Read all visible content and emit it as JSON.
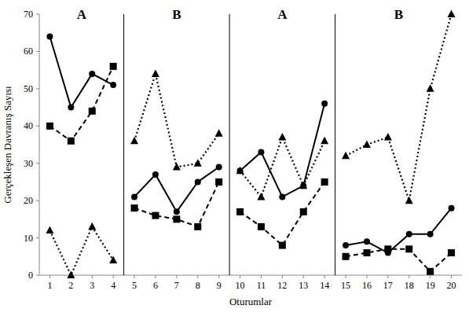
{
  "chart_data": {
    "type": "line",
    "x_label": "Oturumlar",
    "y_label": "Gerçekleşen Davranış Sayısı",
    "x": [
      1,
      2,
      3,
      4,
      5,
      6,
      7,
      8,
      9,
      10,
      11,
      12,
      13,
      14,
      15,
      16,
      17,
      18,
      19,
      20
    ],
    "xlim": [
      0.5,
      20.5
    ],
    "xticks": [
      1,
      2,
      3,
      4,
      5,
      6,
      7,
      8,
      9,
      10,
      11,
      12,
      13,
      14,
      15,
      16,
      17,
      18,
      19,
      20
    ],
    "ylim": [
      0,
      70
    ],
    "yticks": [
      0,
      10,
      20,
      30,
      40,
      50,
      60,
      70
    ],
    "grid": false,
    "phases": [
      {
        "label": "A",
        "start": 1,
        "end": 4
      },
      {
        "label": "B",
        "start": 5,
        "end": 9
      },
      {
        "label": "A",
        "start": 10,
        "end": 14
      },
      {
        "label": "B",
        "start": 15,
        "end": 20
      }
    ],
    "series": [
      {
        "color": "#000000",
        "marker": "circle",
        "line_style": "solid",
        "values": [
          64,
          45,
          54,
          51,
          21,
          27,
          17,
          25,
          29,
          28,
          33,
          21,
          24,
          46,
          8,
          9,
          6,
          11,
          11,
          18
        ]
      },
      {
        "color": "#000000",
        "marker": "square",
        "line_style": "dashed",
        "values": [
          40,
          36,
          44,
          56,
          18,
          16,
          15,
          13,
          25,
          17,
          13,
          8,
          17,
          25,
          5,
          6,
          7,
          7,
          1,
          6
        ]
      },
      {
        "color": "#000000",
        "marker": "triangle",
        "line_style": "dotted",
        "values": [
          12,
          0,
          13,
          4,
          36,
          54,
          29,
          30,
          38,
          28,
          21,
          37,
          24,
          36,
          32,
          35,
          37,
          20,
          50,
          70
        ]
      }
    ]
  }
}
